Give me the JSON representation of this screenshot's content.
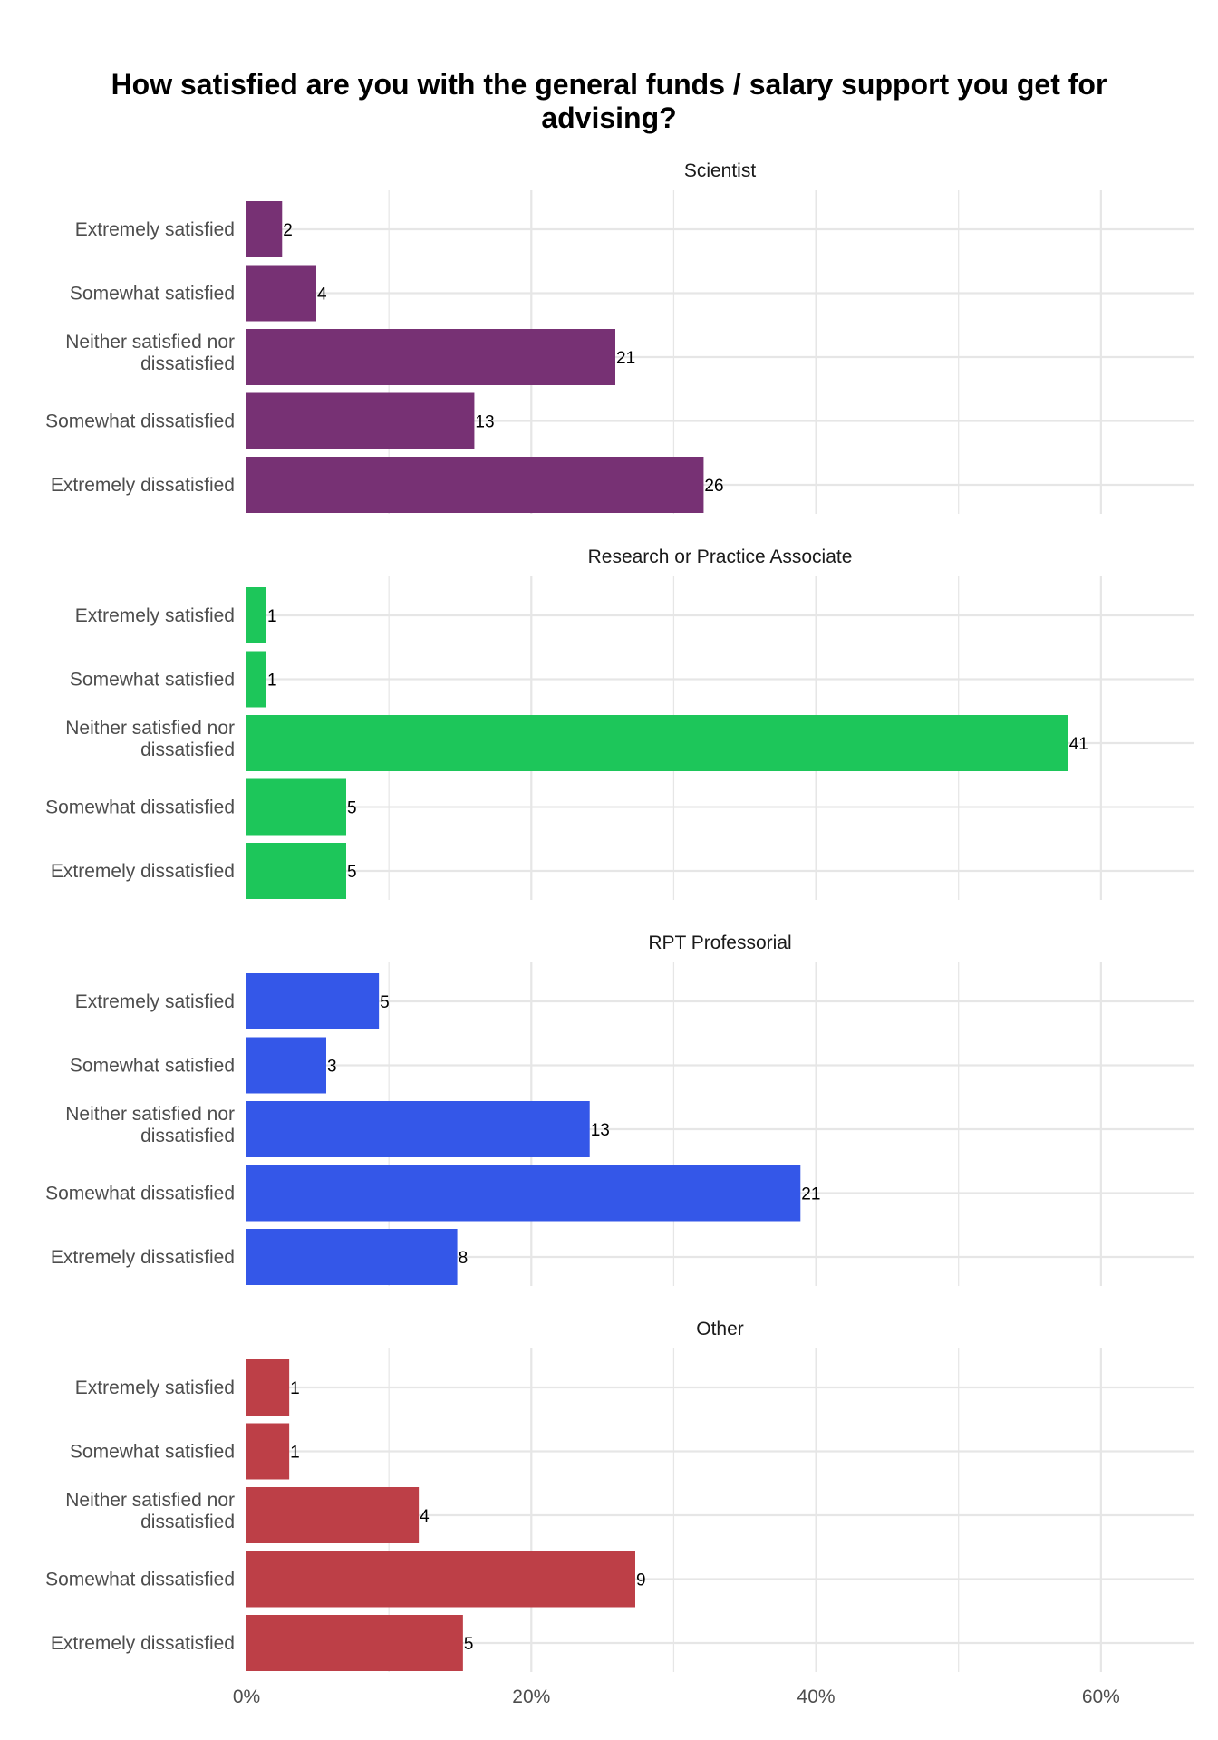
{
  "chart_data": {
    "type": "bar",
    "orientation": "horizontal",
    "title": "How satisfied are you with the general funds / salary support you get for advising?",
    "categories": [
      "Extremely satisfied",
      "Somewhat satisfied",
      "Neither satisfied nor dissatisfied",
      "Somewhat dissatisfied",
      "Extremely dissatisfied"
    ],
    "x_axis": {
      "ticks": [
        0,
        20,
        40,
        60
      ],
      "tick_labels": [
        "0%",
        "20%",
        "40%",
        "60%"
      ],
      "range": [
        0,
        66.5
      ],
      "grid": true
    },
    "panels": [
      {
        "name": "Scientist",
        "color": "#773174",
        "counts": [
          2,
          4,
          21,
          13,
          26
        ],
        "percents": [
          2.5,
          4.9,
          25.9,
          16.0,
          32.1
        ]
      },
      {
        "name": "Research or Practice Associate",
        "color": "#1DC65A",
        "counts": [
          1,
          1,
          41,
          5,
          5
        ],
        "percents": [
          1.4,
          1.4,
          57.7,
          7.0,
          7.0
        ]
      },
      {
        "name": "RPT Professorial",
        "color": "#3457E8",
        "counts": [
          5,
          3,
          13,
          21,
          8
        ],
        "percents": [
          9.3,
          5.6,
          24.1,
          38.9,
          14.8
        ]
      },
      {
        "name": "Other",
        "color": "#BD3F47",
        "counts": [
          1,
          1,
          4,
          9,
          5
        ],
        "percents": [
          3.0,
          3.0,
          12.1,
          27.3,
          15.2
        ]
      }
    ]
  }
}
